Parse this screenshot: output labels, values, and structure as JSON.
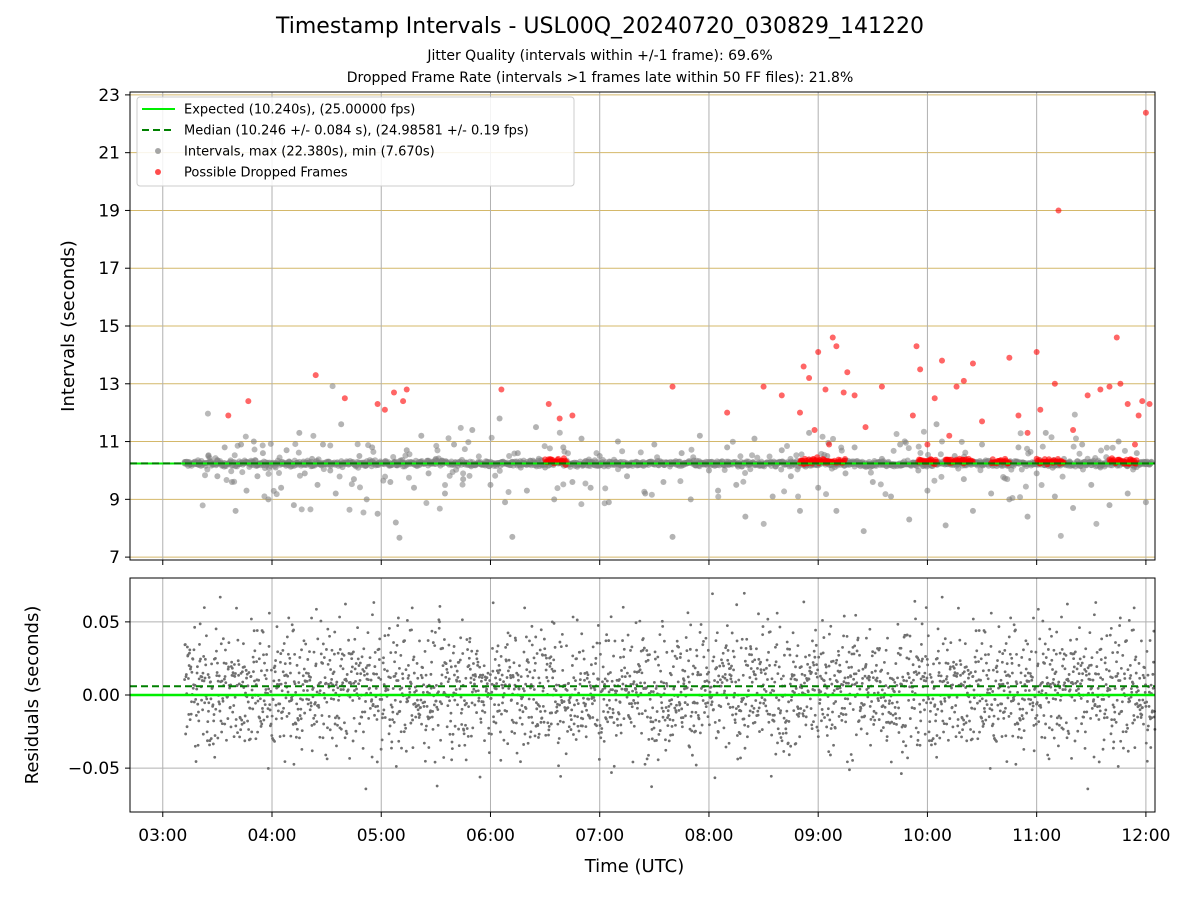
{
  "figure": {
    "title": "Timestamp Intervals - USL00Q_20240720_030829_141220",
    "subtitle_1": "Jitter Quality (intervals within +/-1 frame): 69.6%",
    "subtitle_2": "Dropped Frame Rate (intervals >1 frames late within 50 FF files): 21.8%"
  },
  "colors": {
    "expected": "#00ee00",
    "median": "#008000",
    "intervals": "#808080",
    "dropped": "#ff0000",
    "hgrid_top": "#d4b86a",
    "grid": "#b0b0b0"
  },
  "chart_data": [
    {
      "type": "scatter",
      "ylabel": "Intervals (seconds)",
      "x_unit": "UTC time",
      "xlim": [
        "02:42",
        "12:05"
      ],
      "ylim": [
        6.9,
        23.1
      ],
      "yticks": [
        7,
        9,
        11,
        13,
        15,
        17,
        19,
        21,
        23
      ],
      "ytick_labels": [
        "7",
        "9",
        "11",
        "13",
        "15",
        "17",
        "19",
        "21",
        "23"
      ],
      "grid": true,
      "legend_placement": "top-left",
      "expected_interval_s": 10.24,
      "median_interval_s": 10.246,
      "legend": [
        "Expected (10.240s), (25.00000 fps)",
        "Median (10.246 +/- 0.084 s), (24.98581 +/- 0.19 fps)",
        "Intervals, max (22.380s), min (7.670s)",
        "Possible Dropped Frames"
      ],
      "series": [
        {
          "name": "Intervals, max (22.380s), min (7.670s)",
          "note_values": "sampled approximate points (x = UTC time, y = seconds)",
          "points": [
            [
              "03:12",
              10.24
            ],
            [
              "03:20",
              10.2
            ],
            [
              "03:25",
              10.5
            ],
            [
              "03:30",
              9.8
            ],
            [
              "03:34",
              10.8
            ],
            [
              "03:38",
              9.6
            ],
            [
              "03:40",
              8.6
            ],
            [
              "03:43",
              10.9
            ],
            [
              "03:46",
              9.3
            ],
            [
              "03:50",
              11.0
            ],
            [
              "03:52",
              9.8
            ],
            [
              "03:55",
              10.6
            ],
            [
              "03:58",
              9.0
            ],
            [
              "04:02",
              10.1
            ],
            [
              "04:05",
              9.4
            ],
            [
              "04:08",
              10.7
            ],
            [
              "04:12",
              8.8
            ],
            [
              "04:15",
              11.3
            ],
            [
              "04:18",
              9.9
            ],
            [
              "04:22",
              10.4
            ],
            [
              "04:25",
              9.5
            ],
            [
              "04:28",
              10.9
            ],
            [
              "04:32",
              10.0
            ],
            [
              "04:35",
              9.2
            ],
            [
              "04:38",
              11.6
            ],
            [
              "04:42",
              10.2
            ],
            [
              "04:45",
              9.7
            ],
            [
              "04:48",
              10.5
            ],
            [
              "04:52",
              9.0
            ],
            [
              "04:55",
              10.8
            ],
            [
              "04:58",
              8.5
            ],
            [
              "05:02",
              10.3
            ],
            [
              "05:05",
              9.6
            ],
            [
              "05:08",
              8.2
            ],
            [
              "05:10",
              7.67
            ],
            [
              "05:14",
              10.7
            ],
            [
              "05:18",
              9.4
            ],
            [
              "05:22",
              11.2
            ],
            [
              "05:26",
              9.9
            ],
            [
              "05:30",
              10.4
            ],
            [
              "05:35",
              9.2
            ],
            [
              "05:40",
              10.9
            ],
            [
              "05:45",
              9.7
            ],
            [
              "05:50",
              11.4
            ],
            [
              "05:55",
              10.2
            ],
            [
              "06:00",
              9.5
            ],
            [
              "06:05",
              11.8
            ],
            [
              "06:08",
              8.9
            ],
            [
              "06:12",
              7.7
            ],
            [
              "06:15",
              10.6
            ],
            [
              "06:20",
              9.3
            ],
            [
              "06:25",
              11.5
            ],
            [
              "06:30",
              10.1
            ],
            [
              "06:35",
              9.0
            ],
            [
              "06:40",
              10.8
            ],
            [
              "06:45",
              9.6
            ],
            [
              "06:50",
              11.1
            ],
            [
              "06:55",
              9.4
            ],
            [
              "07:00",
              10.5
            ],
            [
              "07:05",
              8.9
            ],
            [
              "07:10",
              11.0
            ],
            [
              "07:15",
              9.8
            ],
            [
              "07:20",
              10.3
            ],
            [
              "07:25",
              9.2
            ],
            [
              "07:30",
              10.9
            ],
            [
              "07:35",
              9.6
            ],
            [
              "07:40",
              7.7
            ],
            [
              "07:45",
              10.6
            ],
            [
              "07:50",
              9.0
            ],
            [
              "07:55",
              11.2
            ],
            [
              "08:00",
              10.0
            ],
            [
              "08:05",
              9.3
            ],
            [
              "08:10",
              10.8
            ],
            [
              "08:15",
              9.5
            ],
            [
              "08:20",
              8.4
            ],
            [
              "08:25",
              11.1
            ],
            [
              "08:30",
              10.2
            ],
            [
              "08:35",
              9.1
            ],
            [
              "08:40",
              10.7
            ],
            [
              "08:45",
              9.8
            ],
            [
              "08:50",
              8.6
            ],
            [
              "08:55",
              11.3
            ],
            [
              "09:00",
              9.4
            ],
            [
              "09:05",
              10.5
            ],
            [
              "09:10",
              8.6
            ],
            [
              "09:15",
              9.9
            ],
            [
              "09:20",
              10.8
            ],
            [
              "09:25",
              7.9
            ],
            [
              "09:30",
              9.6
            ],
            [
              "09:35",
              10.4
            ],
            [
              "09:40",
              9.1
            ],
            [
              "09:45",
              10.9
            ],
            [
              "09:50",
              8.3
            ],
            [
              "09:55",
              10.0
            ],
            [
              "10:00",
              9.3
            ],
            [
              "10:05",
              11.6
            ],
            [
              "10:10",
              8.1
            ],
            [
              "10:15",
              10.5
            ],
            [
              "10:20",
              9.7
            ],
            [
              "10:25",
              8.6
            ],
            [
              "10:30",
              10.9
            ],
            [
              "10:35",
              9.2
            ],
            [
              "10:40",
              10.3
            ],
            [
              "10:45",
              9.0
            ],
            [
              "10:50",
              10.8
            ],
            [
              "10:55",
              8.4
            ],
            [
              "11:00",
              9.9
            ],
            [
              "11:05",
              11.3
            ],
            [
              "11:10",
              9.1
            ],
            [
              "11:15",
              10.4
            ],
            [
              "11:20",
              8.7
            ],
            [
              "11:25",
              10.9
            ],
            [
              "11:30",
              9.5
            ],
            [
              "11:35",
              10.1
            ],
            [
              "11:40",
              8.8
            ],
            [
              "11:45",
              11.0
            ],
            [
              "11:50",
              9.2
            ],
            [
              "11:55",
              10.6
            ],
            [
              "12:00",
              8.9
            ],
            [
              "12:03",
              10.3
            ]
          ]
        },
        {
          "name": "Possible Dropped Frames",
          "note_values": "sampled approximate points (x = UTC time, y = seconds)",
          "points": [
            [
              "03:36",
              11.9
            ],
            [
              "03:47",
              12.4
            ],
            [
              "04:24",
              13.3
            ],
            [
              "04:40",
              12.5
            ],
            [
              "04:58",
              12.3
            ],
            [
              "05:02",
              12.1
            ],
            [
              "05:07",
              12.7
            ],
            [
              "05:12",
              12.4
            ],
            [
              "05:14",
              12.8
            ],
            [
              "06:06",
              12.8
            ],
            [
              "06:32",
              12.3
            ],
            [
              "06:35",
              10.3
            ],
            [
              "06:38",
              11.8
            ],
            [
              "06:40",
              10.3
            ],
            [
              "06:45",
              11.9
            ],
            [
              "07:40",
              12.9
            ],
            [
              "08:10",
              12.0
            ],
            [
              "08:30",
              12.9
            ],
            [
              "08:40",
              12.6
            ],
            [
              "08:50",
              12.0
            ],
            [
              "08:52",
              13.6
            ],
            [
              "08:55",
              13.2
            ],
            [
              "08:58",
              11.4
            ],
            [
              "09:00",
              14.1
            ],
            [
              "09:04",
              12.8
            ],
            [
              "09:06",
              10.9
            ],
            [
              "09:08",
              14.6
            ],
            [
              "09:10",
              14.3
            ],
            [
              "09:14",
              12.7
            ],
            [
              "09:16",
              13.4
            ],
            [
              "09:20",
              12.6
            ],
            [
              "09:26",
              11.5
            ],
            [
              "09:35",
              12.9
            ],
            [
              "09:52",
              11.9
            ],
            [
              "09:54",
              14.3
            ],
            [
              "09:56",
              13.5
            ],
            [
              "10:00",
              10.9
            ],
            [
              "10:04",
              12.5
            ],
            [
              "10:08",
              13.8
            ],
            [
              "10:12",
              11.2
            ],
            [
              "10:16",
              12.9
            ],
            [
              "10:20",
              13.1
            ],
            [
              "10:25",
              13.7
            ],
            [
              "10:30",
              11.7
            ],
            [
              "10:45",
              13.9
            ],
            [
              "10:50",
              11.9
            ],
            [
              "10:55",
              11.3
            ],
            [
              "11:00",
              14.1
            ],
            [
              "11:02",
              12.1
            ],
            [
              "11:10",
              13.0
            ],
            [
              "11:12",
              19.0
            ],
            [
              "11:20",
              11.4
            ],
            [
              "11:28",
              12.6
            ],
            [
              "11:35",
              12.8
            ],
            [
              "11:40",
              12.9
            ],
            [
              "11:44",
              14.6
            ],
            [
              "11:46",
              13.0
            ],
            [
              "11:50",
              12.3
            ],
            [
              "11:54",
              10.9
            ],
            [
              "11:56",
              11.9
            ],
            [
              "11:58",
              12.4
            ],
            [
              "12:00",
              22.38
            ],
            [
              "12:02",
              12.3
            ]
          ],
          "clusters_near_10_3": [
            [
              "06:30",
              "06:42"
            ],
            [
              "08:50",
              "09:15"
            ],
            [
              "09:55",
              "10:05"
            ],
            [
              "10:10",
              "10:25"
            ],
            [
              "10:35",
              "10:45"
            ],
            [
              "11:00",
              "11:15"
            ],
            [
              "11:40",
              "11:55"
            ]
          ]
        }
      ]
    },
    {
      "type": "scatter",
      "ylabel": "Residuals (seconds)",
      "xlabel": "Time (UTC)",
      "xlim": [
        "02:42",
        "12:05"
      ],
      "ylim": [
        -0.08,
        0.08
      ],
      "yticks": [
        -0.05,
        0.0,
        0.05
      ],
      "ytick_labels": [
        "−0.05",
        "0.00",
        "0.05"
      ],
      "xticks": [
        "03:00",
        "04:00",
        "05:00",
        "06:00",
        "07:00",
        "08:00",
        "09:00",
        "10:00",
        "11:00",
        "12:00"
      ],
      "grid": true,
      "expected_residual": 0.0,
      "median_residual": 0.006,
      "series": [
        {
          "note_values": "dense residual scatter, mostly within ±0.05 s, spanning 03:12 to 12:05",
          "x_range": [
            "03:12",
            "12:05"
          ],
          "y_spread_typical": 0.03,
          "y_extremes": [
            -0.08,
            0.08
          ]
        }
      ]
    }
  ]
}
